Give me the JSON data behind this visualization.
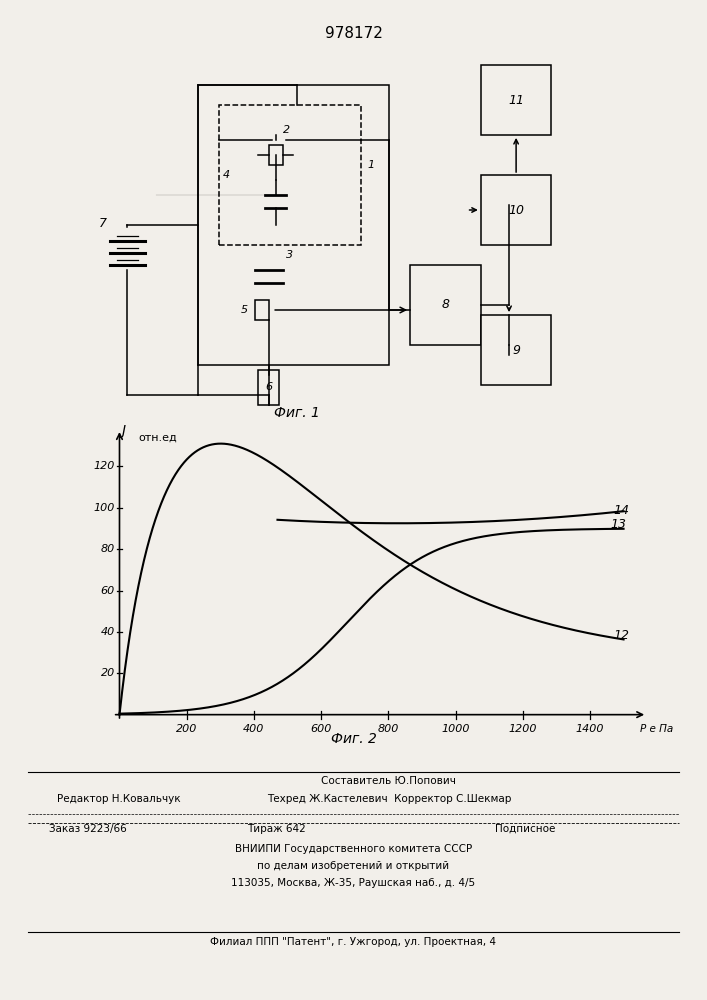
{
  "title": "978172",
  "fig1_caption": "Фиг. 1",
  "fig2_caption": "Фиг. 2",
  "y_label_J": "J",
  "y_label_units": "отн.ед",
  "x_label": "Р е Па",
  "yticks": [
    20,
    40,
    60,
    80,
    100,
    120
  ],
  "xticks": [
    200,
    400,
    600,
    800,
    1000,
    1200,
    1400
  ],
  "curve12_label": "12",
  "curve13_label": "13",
  "curve14_label": "14",
  "bg_color": "#f2efea",
  "line_color": "#000000",
  "footer_col1_r1": "Редактор Н.Ковальчук",
  "footer_col2_r1": "Составитель Ю.Попович",
  "footer_col2_r2": "Техред Ж.Кастелевич  Корректор С.Шекмар",
  "footer_r3_left": "Заказ 9223/66",
  "footer_r3_mid": "Тираж 642",
  "footer_r3_right": "Подписное",
  "footer_r4": "ВНИИПИ Государственного комитета СССР",
  "footer_r5": "по делам изобретений и открытий",
  "footer_r6": "113035, Москва, Ж-35, Раушская наб., д. 4/5",
  "footer_r7": "Филиал ППП \"Патент\", г. Ужгород, ул. Проектная, 4"
}
